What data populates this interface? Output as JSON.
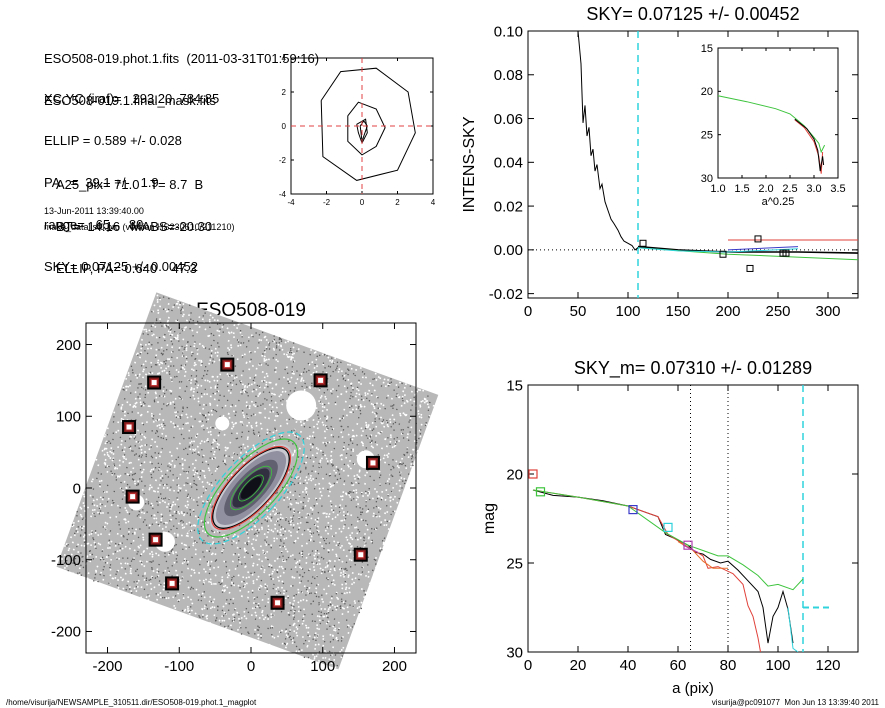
{
  "info": {
    "lines1": [
      "ESO508-019.phot.1.fits  (2011-03-31T01:59:16)",
      "ESO508-019.1.final_mask.fits"
    ],
    "lines2": [
      "XC,YC (iraf)=   293.20, 784.85",
      "ELLIP = 0.589 +/- 0.028",
      "PA   =  39.1 +/-   1.9",
      "range=   65.-   80.",
      "SKY= 0.07125 +/- 0.00452"
    ],
    "lines3": [
      "A25_pix= 71.0   T= 8.7  B",
      "BT=  14.16   MABS=-20.30",
      "ELLIP, PA= 0.640    47.3"
    ],
    "date": "13-Jun-2011 13:39:40.00",
    "program": "make_datalist0.pro (version HS230610/211210)"
  },
  "footer": {
    "path": "/home/visurija/NEWSAMPLE_310511.dir/ESO508-019.phot.1_magplot",
    "user": "visurija@pc091077  Mon Jun 13 13:39:40 2011"
  },
  "colors": {
    "red": "#e0413a",
    "cyan": "#2fd3dc",
    "green": "#3ec43e",
    "blue": "#3a3ac8",
    "magenta": "#b040b0",
    "orange": "#e8702a",
    "grid": "#e04040"
  },
  "chart_data": [
    {
      "id": "contour",
      "type": "line",
      "title": "",
      "xlim": [
        -4,
        4
      ],
      "ylim": [
        -4,
        4
      ],
      "xticks": [
        "-4",
        "-2",
        "0",
        "2",
        "4"
      ],
      "yticks": [
        "-4",
        "-2",
        "0",
        "2",
        "4"
      ],
      "contours": [
        [
          [
            -2.3,
            1.5
          ],
          [
            -1.2,
            3.2
          ],
          [
            0.8,
            3.4
          ],
          [
            2.6,
            2.0
          ],
          [
            3.0,
            -0.4
          ],
          [
            2.0,
            -2.6
          ],
          [
            -0.3,
            -3.2
          ],
          [
            -2.2,
            -1.8
          ],
          [
            -2.3,
            1.5
          ]
        ],
        [
          [
            -0.8,
            0.6
          ],
          [
            -0.2,
            1.4
          ],
          [
            0.8,
            1.0
          ],
          [
            1.3,
            -0.1
          ],
          [
            0.8,
            -1.2
          ],
          [
            0.0,
            -1.7
          ],
          [
            -0.8,
            -0.9
          ],
          [
            -0.8,
            0.6
          ]
        ],
        [
          [
            -0.3,
            0.1
          ],
          [
            0.2,
            0.4
          ],
          [
            0.3,
            -0.4
          ],
          [
            0.0,
            -1.0
          ],
          [
            -0.2,
            -0.4
          ],
          [
            -0.3,
            0.1
          ]
        ],
        [
          [
            0.1,
            0.3
          ],
          [
            0.3,
            0.0
          ],
          [
            0.0,
            -0.9
          ],
          [
            -0.1,
            0.0
          ],
          [
            0.1,
            0.3
          ]
        ]
      ],
      "crosshair": [
        0,
        0
      ]
    },
    {
      "id": "sky-profile",
      "type": "line",
      "title": "SKY= 0.07125 +/- 0.00452",
      "ylabel": "INTENS-SKY",
      "xlim": [
        0,
        330
      ],
      "ylim": [
        -0.022,
        0.1
      ],
      "xticks": [
        "0",
        "50",
        "100",
        "150",
        "200",
        "250",
        "300"
      ],
      "yticks": [
        "-0.02",
        "0.00",
        "0.02",
        "0.04",
        "0.06",
        "0.08",
        "0.10"
      ],
      "series": [
        {
          "name": "profile",
          "color": "#000000",
          "points": [
            [
              50,
              0.1
            ],
            [
              53,
              0.085
            ],
            [
              55,
              0.058
            ],
            [
              57,
              0.066
            ],
            [
              59,
              0.052
            ],
            [
              61,
              0.056
            ],
            [
              63,
              0.043
            ],
            [
              65,
              0.046
            ],
            [
              67,
              0.036
            ],
            [
              69,
              0.039
            ],
            [
              72,
              0.028
            ],
            [
              74,
              0.03
            ],
            [
              77,
              0.022
            ],
            [
              80,
              0.018
            ],
            [
              83,
              0.014
            ],
            [
              86,
              0.012
            ],
            [
              90,
              0.009
            ],
            [
              93,
              0.006
            ],
            [
              96,
              0.004
            ],
            [
              100,
              0.003
            ],
            [
              104,
              0.002
            ],
            [
              107,
              0.0
            ],
            [
              110,
              0.001
            ]
          ]
        },
        {
          "name": "sky-fit",
          "color": "#000000",
          "points": [
            [
              110,
              0.0015
            ],
            [
              150,
              0.0
            ],
            [
              200,
              -0.001
            ],
            [
              270,
              -0.001
            ],
            [
              330,
              -0.0015
            ]
          ]
        },
        {
          "name": "red",
          "color": "#e0413a",
          "points": [
            [
              200,
              0.0045
            ],
            [
              330,
              0.0045
            ]
          ]
        },
        {
          "name": "green",
          "color": "#3ec43e",
          "points": [
            [
              110,
              0.001
            ],
            [
              200,
              -0.002
            ],
            [
              330,
              -0.0045
            ]
          ]
        },
        {
          "name": "cyan",
          "color": "#2fd3dc",
          "points": [
            [
              110,
              0.001
            ],
            [
              150,
              -0.0005
            ],
            [
              200,
              -0.001
            ],
            [
              270,
              0.0005
            ]
          ]
        },
        {
          "name": "blue",
          "color": "#3a3ac8",
          "points": [
            [
              200,
              0.0
            ],
            [
              270,
              0.0015
            ]
          ]
        }
      ],
      "markers": [
        [
          115,
          0.003
        ],
        [
          195,
          -0.002
        ],
        [
          222,
          -0.0085
        ],
        [
          230,
          0.005
        ],
        [
          255,
          -0.0015
        ],
        [
          258,
          -0.0015
        ]
      ],
      "vline": 110,
      "inset": {
        "xlabel": "a^0.25",
        "xlim": [
          1.0,
          3.5
        ],
        "ylim": [
          15,
          30
        ],
        "xticks": [
          "1.0",
          "1.5",
          "2.0",
          "2.5",
          "3.0",
          "3.5"
        ],
        "yticks": [
          "15",
          "20",
          "25",
          "30"
        ],
        "series": [
          {
            "color": "#3ec43e",
            "points": [
              [
                1.0,
                20.5
              ],
              [
                1.6,
                21.2
              ],
              [
                2.2,
                22.0
              ],
              [
                2.5,
                22.6
              ],
              [
                2.65,
                23.3
              ],
              [
                2.8,
                24.0
              ],
              [
                3.0,
                25.3
              ],
              [
                3.1,
                26.0
              ],
              [
                3.15,
                27.0
              ],
              [
                3.22,
                26.2
              ]
            ]
          },
          {
            "color": "#e0413a",
            "points": [
              [
                2.6,
                23.3
              ],
              [
                2.8,
                24.2
              ],
              [
                3.0,
                25.8
              ],
              [
                3.1,
                27.5
              ],
              [
                3.15,
                29.5
              ],
              [
                3.18,
                27.0
              ]
            ]
          },
          {
            "color": "#000000",
            "points": [
              [
                2.6,
                23.2
              ],
              [
                2.85,
                24.3
              ],
              [
                3.0,
                25.5
              ],
              [
                3.08,
                26.8
              ],
              [
                3.13,
                29.2
              ],
              [
                3.18,
                27.5
              ],
              [
                3.2,
                28.5
              ]
            ]
          }
        ]
      }
    },
    {
      "id": "galaxy-map",
      "type": "scatter",
      "title": "ESO508-019",
      "xlim": [
        -230,
        230
      ],
      "ylim": [
        -230,
        230
      ],
      "xticks": [
        "-200",
        "-100",
        "0",
        "100",
        "200"
      ],
      "yticks": [
        "-200",
        "-100",
        "0",
        "100",
        "200"
      ],
      "masks": [
        [
          -33,
          172
        ],
        [
          -135,
          147
        ],
        [
          97,
          150
        ],
        [
          -170,
          85
        ],
        [
          170,
          35
        ],
        [
          -165,
          -12
        ],
        [
          -133,
          -72
        ],
        [
          153,
          -93
        ],
        [
          -110,
          -133
        ],
        [
          37,
          -160
        ]
      ],
      "galaxy": {
        "center": [
          0,
          0
        ],
        "a": 78,
        "b": 30,
        "pa_deg": 43
      },
      "ellipses": [
        {
          "color": "#000000",
          "scale": 0.92
        },
        {
          "color": "#e0413a",
          "scale": 0.95
        },
        {
          "color": "#3ec43e",
          "scale": 1.12
        },
        {
          "color": "#2fd3dc",
          "scale": 1.28
        }
      ]
    },
    {
      "id": "mag-profile",
      "type": "line",
      "title": "SKY_m=  0.07310 +/- 0.01289",
      "xlabel": "a (pix)",
      "ylabel": "mag",
      "xlim": [
        0,
        132
      ],
      "ylim": [
        15,
        30
      ],
      "xticks": [
        "0",
        "20",
        "40",
        "60",
        "80",
        "100",
        "120"
      ],
      "yticks": [
        "15",
        "20",
        "25",
        "30"
      ],
      "series": [
        {
          "name": "black",
          "color": "#000000",
          "points": [
            [
              2,
              20.9
            ],
            [
              10,
              21.2
            ],
            [
              20,
              21.3
            ],
            [
              30,
              21.5
            ],
            [
              40,
              21.8
            ],
            [
              48,
              22.2
            ],
            [
              52,
              22.4
            ],
            [
              55,
              23.4
            ],
            [
              60,
              23.7
            ],
            [
              64,
              24.0
            ],
            [
              67,
              24.4
            ],
            [
              70,
              24.5
            ],
            [
              73,
              24.8
            ],
            [
              77,
              25.0
            ],
            [
              80,
              24.9
            ],
            [
              84,
              25.4
            ],
            [
              88,
              26.0
            ],
            [
              92,
              26.6
            ],
            [
              94,
              27.5
            ],
            [
              96,
              29.5
            ],
            [
              98,
              28.0
            ],
            [
              100,
              27.5
            ],
            [
              102,
              26.6
            ],
            [
              104,
              27.6
            ],
            [
              106,
              29.5
            ]
          ]
        },
        {
          "name": "red",
          "color": "#e0413a",
          "points": [
            [
              2,
              20.9
            ],
            [
              20,
              21.3
            ],
            [
              40,
              21.8
            ],
            [
              52,
              22.4
            ],
            [
              56,
              23.4
            ],
            [
              64,
              24.1
            ],
            [
              70,
              24.6
            ],
            [
              72,
              25.3
            ],
            [
              76,
              25.2
            ],
            [
              82,
              25.6
            ],
            [
              86,
              26.2
            ],
            [
              88,
              27.4
            ],
            [
              90,
              28.0
            ],
            [
              92,
              29.2
            ],
            [
              93,
              30.0
            ]
          ]
        },
        {
          "name": "green",
          "color": "#3ec43e",
          "points": [
            [
              2,
              20.9
            ],
            [
              20,
              21.3
            ],
            [
              40,
              21.8
            ],
            [
              55,
              23.3
            ],
            [
              64,
              24.0
            ],
            [
              70,
              24.3
            ],
            [
              76,
              24.6
            ],
            [
              80,
              24.6
            ],
            [
              86,
              25.1
            ],
            [
              92,
              25.7
            ],
            [
              96,
              26.3
            ],
            [
              100,
              26.2
            ],
            [
              106,
              26.5
            ],
            [
              110,
              25.9
            ]
          ]
        },
        {
          "name": "orange",
          "color": "#e8702a",
          "points": [
            [
              60,
              23.8
            ],
            [
              66,
              24.3
            ],
            [
              70,
              24.9
            ],
            [
              74,
              25.3
            ],
            [
              80,
              25.3
            ]
          ]
        },
        {
          "name": "cyan",
          "color": "#2fd3dc",
          "points": [
            [
              104,
              27.5
            ],
            [
              106,
              29.8
            ],
            [
              108,
              30.0
            ]
          ]
        },
        {
          "name": "cyan-sky",
          "color": "#2fd3dc",
          "points": [
            [
              110,
              27.5
            ],
            [
              122,
              27.5
            ]
          ]
        },
        {
          "name": "magenta",
          "color": "#b040b0",
          "points": [
            [
              62,
              24.0
            ],
            [
              68,
              24.4
            ]
          ]
        }
      ],
      "markers": [
        {
          "x": 2,
          "y": 20.0,
          "color": "#e0413a"
        },
        {
          "x": 5,
          "y": 21.0,
          "color": "#3ec43e"
        },
        {
          "x": 42,
          "y": 22.0,
          "color": "#3a3ac8"
        },
        {
          "x": 56,
          "y": 23.0,
          "color": "#2fd3dc"
        },
        {
          "x": 64,
          "y": 24.0,
          "color": "#b040b0"
        }
      ],
      "vlines_dotted": [
        65,
        80
      ],
      "vline_dashed": 110
    }
  ]
}
